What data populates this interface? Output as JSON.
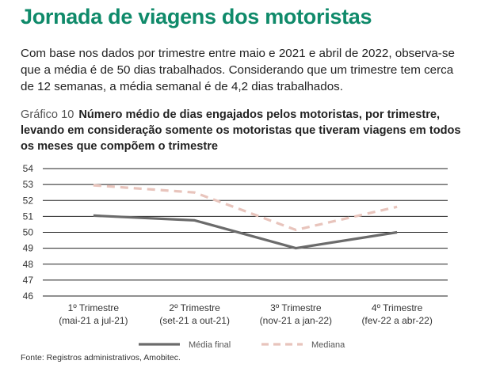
{
  "heading": "Jornada de viagens dos motoristas",
  "intro": "Com base nos dados por trimestre entre maio e 2021 e abril de 2022, observa-se que a média é de 50 dias trabalhados. Considerando que um trimestre tem cerca de 12 semanas, a média semanal é de 4,2 dias trabalhados.",
  "chart_caption": {
    "number": "Gráfico 10",
    "title": "Número médio de dias engajados pelos motoristas, por trimestre, levando em consideração somente os motoristas que tiveram viagens em todos os meses que compõem o trimestre"
  },
  "source": "Fonte: Registros administrativos, Amobitec.",
  "chart_data": {
    "type": "line",
    "categories": [
      [
        "1º Trimestre",
        "(mai-21 a jul-21)"
      ],
      [
        "2º Trimestre",
        "(set-21 a out-21)"
      ],
      [
        "3º Trimestre",
        "(nov-21 a jan-22)"
      ],
      [
        "4º Trimestre",
        "(fev-22 a abr-22)"
      ]
    ],
    "series": [
      {
        "name": "Média final",
        "values": [
          51.05,
          50.75,
          49.0,
          50.0
        ],
        "color": "#6b6b6b",
        "style": "solid"
      },
      {
        "name": "Mediana",
        "values": [
          52.95,
          52.5,
          50.15,
          51.6
        ],
        "color": "#e8c4bc",
        "style": "dashed"
      }
    ],
    "ylim": [
      46,
      54
    ],
    "yticks": [
      54,
      53,
      52,
      51,
      50,
      49,
      48,
      47,
      46
    ],
    "grid": true,
    "legend_position": "bottom"
  }
}
